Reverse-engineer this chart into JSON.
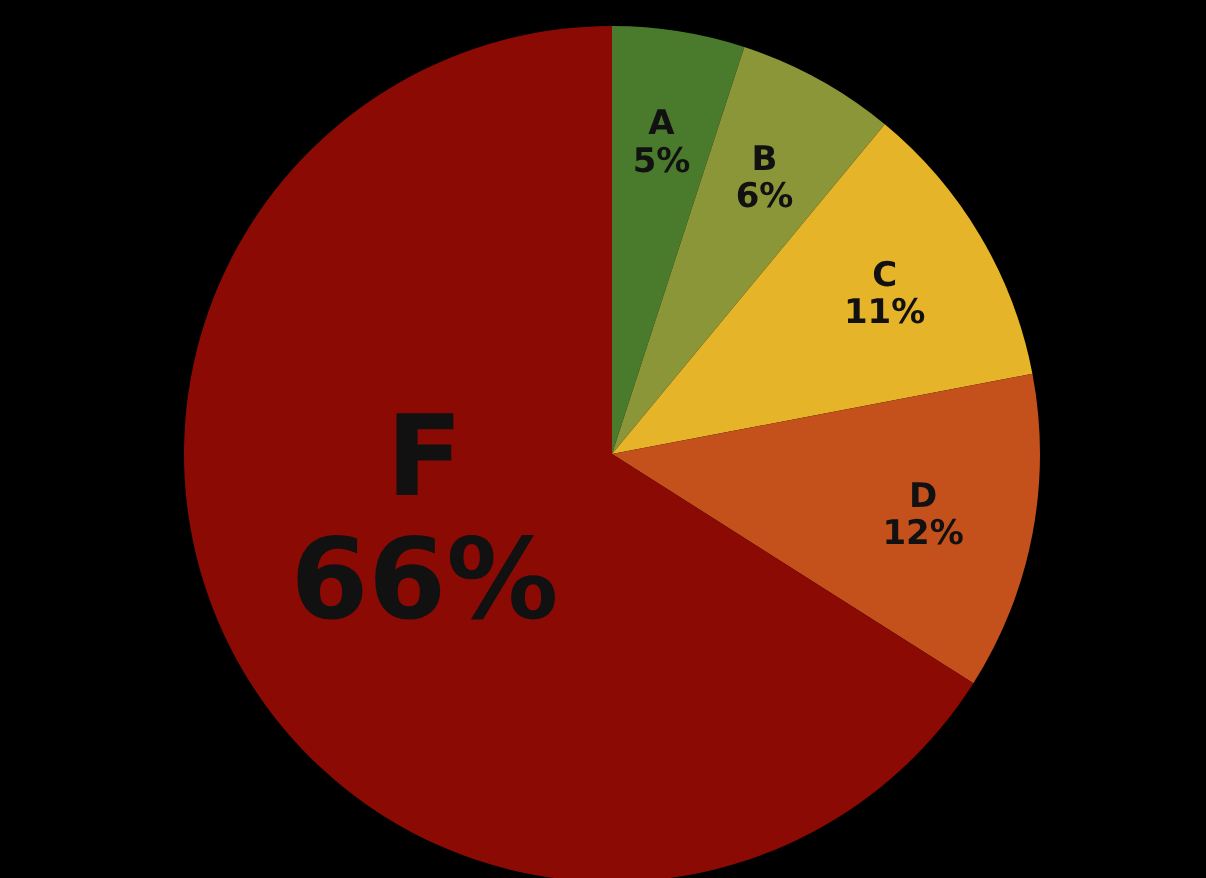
{
  "chart_data": {
    "type": "pie",
    "categories": [
      "A",
      "B",
      "C",
      "D",
      "F"
    ],
    "values": [
      5,
      6,
      11,
      12,
      66
    ],
    "value_labels": [
      "5%",
      "6%",
      "11%",
      "12%",
      "66%"
    ],
    "colors": [
      "#4a7a2c",
      "#8a9638",
      "#e6b428",
      "#c4501c",
      "#8b0a04"
    ]
  }
}
